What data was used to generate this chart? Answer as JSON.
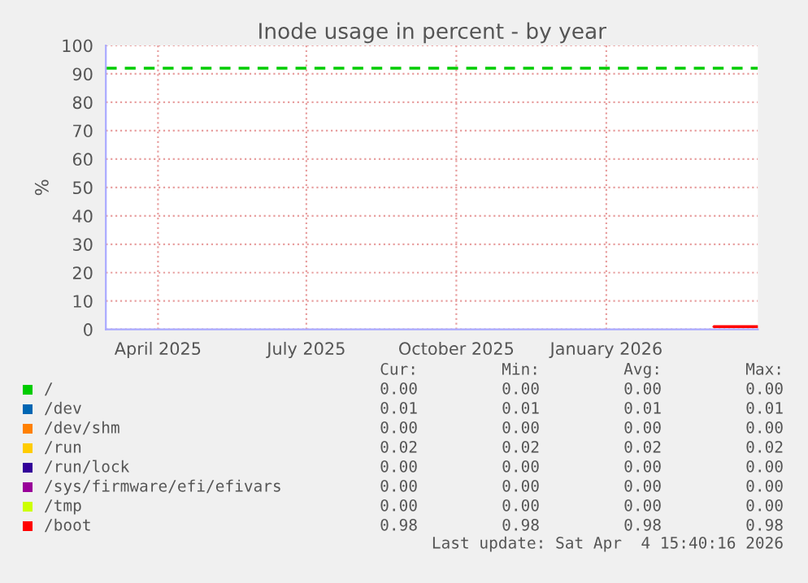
{
  "chart_data": {
    "type": "line",
    "title": "Inode usage in percent - by year",
    "ylabel": "%",
    "xlim": [
      "2025-02-28",
      "2026-04-04"
    ],
    "xticks": [
      {
        "value": "2025-04-01",
        "label": "April 2025"
      },
      {
        "value": "2025-07-01",
        "label": "July 2025"
      },
      {
        "value": "2025-10-01",
        "label": "October 2025"
      },
      {
        "value": "2026-01-01",
        "label": "January 2026"
      }
    ],
    "ylim": [
      0,
      100
    ],
    "yticks": [
      0,
      10,
      20,
      30,
      40,
      50,
      60,
      70,
      80,
      90,
      100
    ],
    "grid": true,
    "legend": "bottom",
    "marker": "none",
    "line_style": "solid",
    "series": [
      {
        "name": "/",
        "color": "#00cc00"
      },
      {
        "name": "/dev",
        "color": "#0066b3"
      },
      {
        "name": "/dev/shm",
        "color": "#ff8000"
      },
      {
        "name": "/run",
        "color": "#ffcc00"
      },
      {
        "name": "/run/lock",
        "color": "#330099"
      },
      {
        "name": "/sys/firmware/efi/efivars",
        "color": "#990099"
      },
      {
        "name": "/tmp",
        "color": "#ccff00"
      },
      {
        "name": "/boot",
        "color": "#ff0000",
        "x": [
          "2026-03-08",
          "2026-04-04"
        ],
        "values": [
          0.98,
          0.98
        ]
      }
    ],
    "ref_lines": [
      {
        "axis": "y",
        "value": 92,
        "color": "#00cc00",
        "line_style": "dashed"
      }
    ],
    "annotations": [
      "Cur:",
      "Min:",
      "Avg:",
      "Max:",
      "0.00",
      "0.00",
      "0.00",
      "0.00",
      "0.01",
      "0.01",
      "0.01",
      "0.01",
      "0.00",
      "0.00",
      "0.00",
      "0.00",
      "0.02",
      "0.02",
      "0.02",
      "0.02",
      "0.00",
      "0.00",
      "0.00",
      "0.00",
      "0.00",
      "0.00",
      "0.00",
      "0.00",
      "0.00",
      "0.00",
      "0.00",
      "0.00",
      "0.98",
      "0.98",
      "0.98",
      "0.98",
      "Last update: Sat Apr  4 15:40:16 2026"
    ]
  }
}
